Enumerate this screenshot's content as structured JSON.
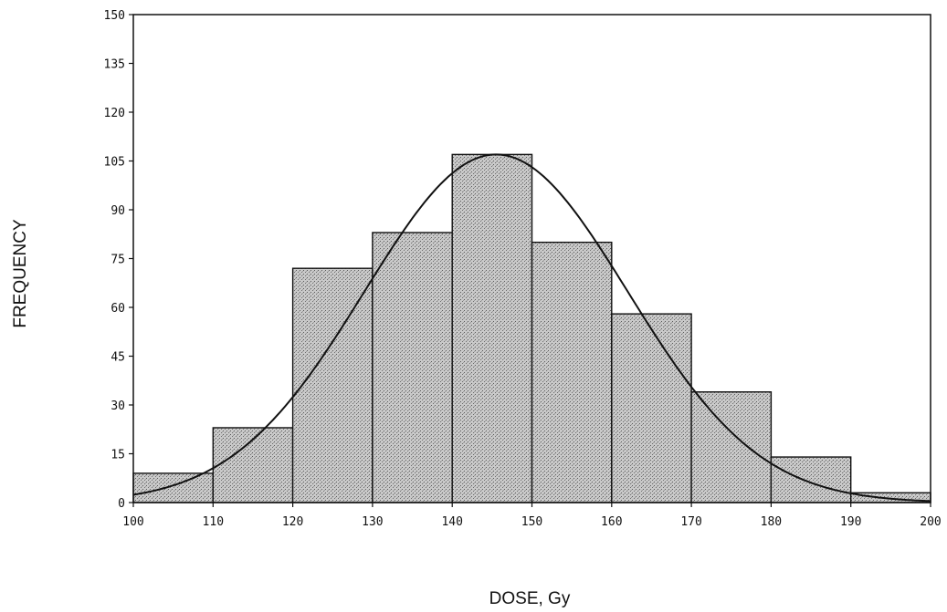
{
  "chart_data": {
    "type": "bar",
    "subtype": "histogram with fitted normal curve",
    "title": "",
    "xlabel": "DOSE, Gy",
    "ylabel": "FREQUENCY",
    "xlim": [
      100,
      200
    ],
    "ylim": [
      0,
      150
    ],
    "x_ticks": [
      "100",
      "110",
      "120",
      "130",
      "140",
      "150",
      "160",
      "170",
      "180",
      "190",
      "200"
    ],
    "y_ticks": [
      "0",
      "15",
      "30",
      "45",
      "60",
      "75",
      "90",
      "105",
      "120",
      "135",
      "150"
    ],
    "bins": [
      {
        "start": 100,
        "end": 110,
        "value": 9
      },
      {
        "start": 110,
        "end": 120,
        "value": 23
      },
      {
        "start": 120,
        "end": 130,
        "value": 72
      },
      {
        "start": 130,
        "end": 140,
        "value": 83
      },
      {
        "start": 140,
        "end": 150,
        "value": 107
      },
      {
        "start": 150,
        "end": 160,
        "value": 80
      },
      {
        "start": 160,
        "end": 170,
        "value": 58
      },
      {
        "start": 170,
        "end": 180,
        "value": 34
      },
      {
        "start": 180,
        "end": 190,
        "value": 14
      },
      {
        "start": 190,
        "end": 200,
        "value": 3
      }
    ],
    "curve": {
      "type": "normal",
      "mean": 145.5,
      "sd": 16.5,
      "peak": 107
    },
    "grid": false,
    "bar_color": "#b8b8b8"
  }
}
